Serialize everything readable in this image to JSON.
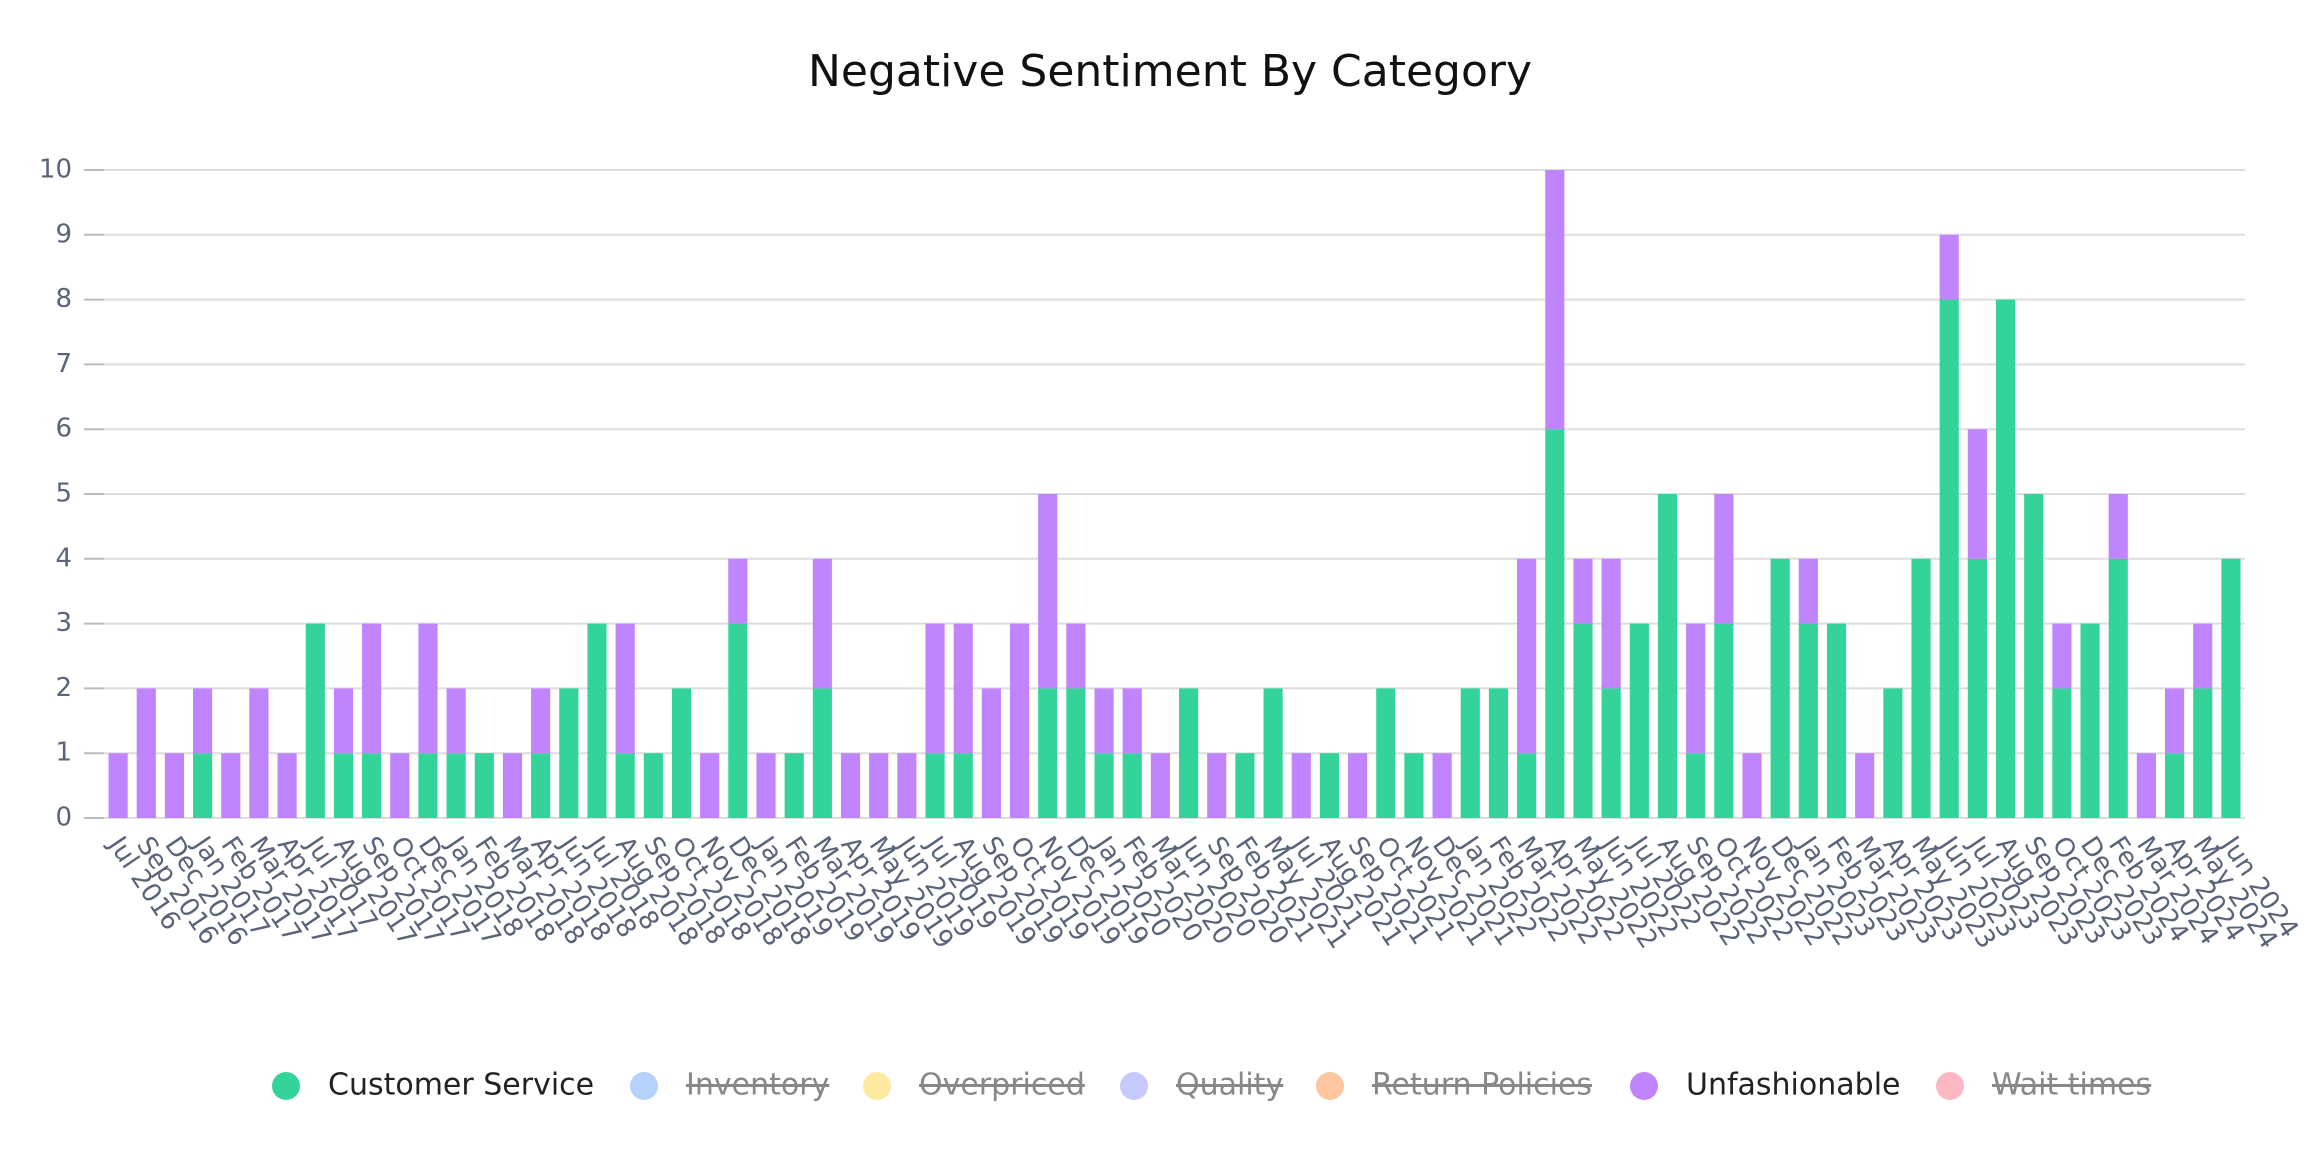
{
  "chart_data": {
    "type": "bar",
    "stacked": true,
    "title": "Negative Sentiment By Category",
    "categories": [
      "Jul 2016",
      "Sep 2016",
      "Dec 2016",
      "Jan 2017",
      "Feb 2017",
      "Mar 2017",
      "Apr 2017",
      "Jul 2017",
      "Aug 2017",
      "Sep 2017",
      "Oct 2017",
      "Dec 2017",
      "Jan 2018",
      "Feb 2018",
      "Mar 2018",
      "Apr 2018",
      "Jun 2018",
      "Jul 2018",
      "Aug 2018",
      "Sep 2018",
      "Oct 2018",
      "Nov 2018",
      "Dec 2018",
      "Jan 2019",
      "Feb 2019",
      "Mar 2019",
      "Apr 2019",
      "May 2019",
      "Jun 2019",
      "Jul 2019",
      "Aug 2019",
      "Sep 2019",
      "Oct 2019",
      "Nov 2019",
      "Dec 2019",
      "Jan 2020",
      "Feb 2020",
      "Mar 2020",
      "Jun 2020",
      "Sep 2020",
      "Feb 2021",
      "May 2021",
      "Jul 2021",
      "Aug 2021",
      "Sep 2021",
      "Oct 2021",
      "Nov 2021",
      "Dec 2021",
      "Jan 2022",
      "Feb 2022",
      "Mar 2022",
      "Apr 2022",
      "May 2022",
      "Jun 2022",
      "Jul 2022",
      "Aug 2022",
      "Sep 2022",
      "Oct 2022",
      "Nov 2022",
      "Dec 2022",
      "Jan 2023",
      "Feb 2023",
      "Mar 2023",
      "Apr 2023",
      "May 2023",
      "Jun 2023",
      "Jul 2023",
      "Aug 2023",
      "Sep 2023",
      "Oct 2023",
      "Dec 2023",
      "Feb 2024",
      "Mar 2024",
      "Apr 2024",
      "May 2024",
      "Jun 2024"
    ],
    "series": [
      {
        "name": "Customer Service",
        "color": "#34d399",
        "values": [
          0,
          0,
          0,
          1,
          0,
          0,
          0,
          3,
          1,
          1,
          0,
          1,
          1,
          1,
          0,
          1,
          2,
          3,
          1,
          1,
          2,
          0,
          3,
          0,
          1,
          2,
          0,
          0,
          0,
          1,
          1,
          0,
          0,
          2,
          2,
          1,
          1,
          0,
          2,
          0,
          1,
          2,
          0,
          1,
          0,
          2,
          1,
          0,
          2,
          2,
          1,
          6,
          3,
          2,
          3,
          5,
          1,
          3,
          0,
          4,
          3,
          3,
          0,
          2,
          4,
          8,
          4,
          8,
          5,
          2,
          3,
          4,
          0,
          1,
          2,
          4
        ]
      },
      {
        "name": "Inventory",
        "color": "#b4d2fb",
        "hidden": true
      },
      {
        "name": "Overpriced",
        "color": "#fde9a0",
        "hidden": true
      },
      {
        "name": "Quality",
        "color": "#c5c9fb",
        "hidden": true
      },
      {
        "name": "Return Policies",
        "color": "#fdc69e",
        "hidden": true
      },
      {
        "name": "Unfashionable",
        "color": "#c084fc",
        "values": [
          1,
          2,
          1,
          1,
          1,
          2,
          1,
          0,
          1,
          2,
          1,
          2,
          1,
          0,
          1,
          1,
          0,
          0,
          2,
          0,
          0,
          1,
          1,
          1,
          0,
          2,
          1,
          1,
          1,
          2,
          2,
          2,
          3,
          3,
          1,
          1,
          1,
          1,
          0,
          1,
          0,
          0,
          1,
          0,
          1,
          0,
          0,
          1,
          0,
          0,
          3,
          4,
          1,
          2,
          0,
          0,
          2,
          2,
          1,
          0,
          1,
          0,
          1,
          0,
          0,
          1,
          2,
          0,
          0,
          1,
          0,
          1,
          1,
          1,
          1,
          0
        ]
      },
      {
        "name": "Wait times",
        "color": "#fcb8c2",
        "hidden": true
      }
    ],
    "ylim": [
      0,
      10
    ],
    "yticks": [
      0,
      1,
      2,
      3,
      4,
      5,
      6,
      7,
      8,
      9,
      10
    ],
    "grid": true,
    "legend": "bottom"
  }
}
